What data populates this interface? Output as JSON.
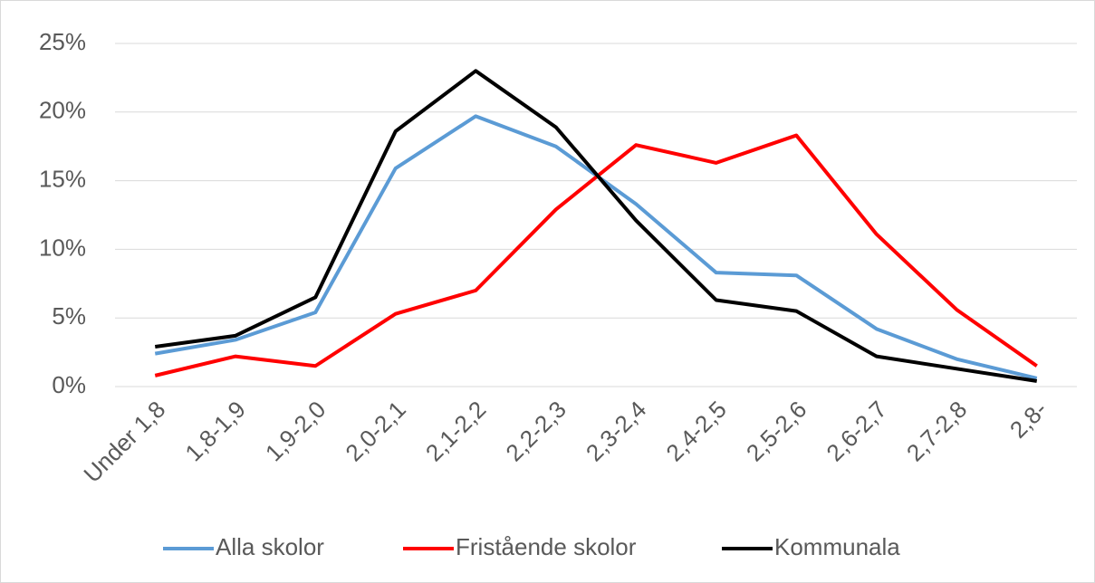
{
  "chart_data": {
    "type": "line",
    "categories": [
      "Under 1,8",
      "1,8-1,9",
      "1,9-2,0",
      "2,0-2,1",
      "2,1-2,2",
      "2,2-2,3",
      "2,3-2,4",
      "2,4-2,5",
      "2,5-2,6",
      "2,6-2,7",
      "2,7-2,8",
      "2,8-"
    ],
    "series": [
      {
        "name": "Alla skolor",
        "color": "#5b9bd5",
        "values": [
          2.4,
          3.4,
          5.4,
          15.9,
          19.7,
          17.5,
          13.3,
          8.3,
          8.1,
          4.2,
          2.0,
          0.6
        ]
      },
      {
        "name": "Fristående skolor",
        "color": "#ff0000",
        "values": [
          0.8,
          2.2,
          1.5,
          5.3,
          7.0,
          12.9,
          17.6,
          16.3,
          18.3,
          11.1,
          5.6,
          1.5
        ]
      },
      {
        "name": "Kommunala",
        "color": "#000000",
        "values": [
          2.9,
          3.7,
          6.5,
          18.6,
          23.0,
          18.9,
          12.1,
          6.3,
          5.5,
          2.2,
          1.3,
          0.4
        ]
      }
    ],
    "ylim": [
      0,
      25
    ],
    "yticks": [
      {
        "value": 0,
        "label": "0%"
      },
      {
        "value": 5,
        "label": "5%"
      },
      {
        "value": 10,
        "label": "10%"
      },
      {
        "value": 15,
        "label": "15%"
      },
      {
        "value": 20,
        "label": "20%"
      },
      {
        "value": 25,
        "label": "25%"
      }
    ],
    "grid": true,
    "legend": "bottom"
  }
}
